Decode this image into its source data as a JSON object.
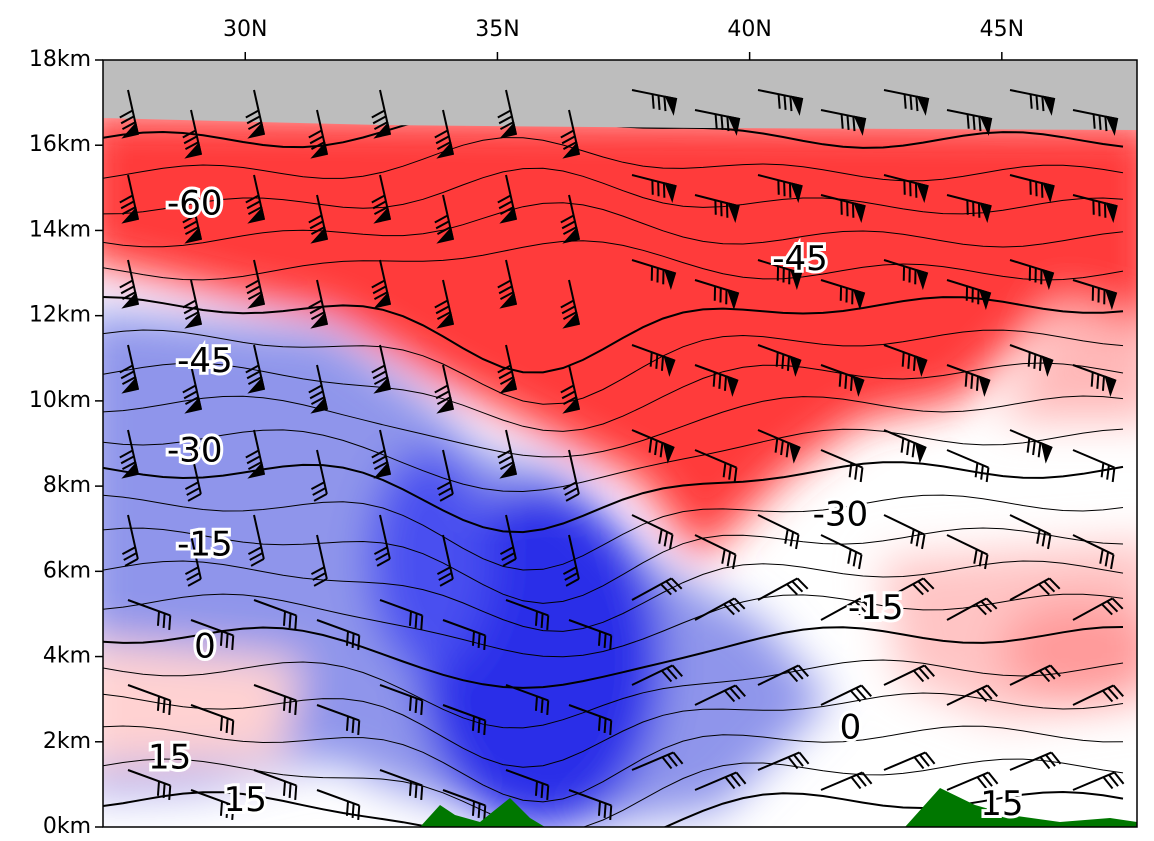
{
  "chart_data": {
    "type": "cross-section",
    "xlim": [
      27.18,
      47.68
    ],
    "ylim": [
      0,
      18
    ],
    "xticks": [
      {
        "value": 30,
        "label": "30N"
      },
      {
        "value": 35,
        "label": "35N"
      },
      {
        "value": 40,
        "label": "40N"
      },
      {
        "value": 45,
        "label": "45N"
      }
    ],
    "yticks": [
      {
        "value": 0,
        "label": "0km"
      },
      {
        "value": 2,
        "label": "2km"
      },
      {
        "value": 4,
        "label": "4km"
      },
      {
        "value": 6,
        "label": "6km"
      },
      {
        "value": 8,
        "label": "8km"
      },
      {
        "value": 10,
        "label": "10km"
      },
      {
        "value": 12,
        "label": "12km"
      },
      {
        "value": 14,
        "label": "14km"
      },
      {
        "value": 16,
        "label": "16km"
      },
      {
        "value": 18,
        "label": "18km"
      }
    ],
    "annotations": [
      {
        "value": -60,
        "x": 29.0,
        "y": 14.6
      },
      {
        "value": -45,
        "x": 41.0,
        "y": 13.3
      },
      {
        "value": -45,
        "x": 29.2,
        "y": 10.9
      },
      {
        "value": -30,
        "x": 29.0,
        "y": 8.8
      },
      {
        "value": -30,
        "x": 41.8,
        "y": 7.3
      },
      {
        "value": -15,
        "x": 29.2,
        "y": 6.6
      },
      {
        "value": -15,
        "x": 42.5,
        "y": 5.1
      },
      {
        "value": 0,
        "x": 29.2,
        "y": 4.2
      },
      {
        "value": 0,
        "x": 42.0,
        "y": 2.3
      },
      {
        "value": 15,
        "x": 28.5,
        "y": 1.6
      },
      {
        "value": 15,
        "x": 30.0,
        "y": 0.6
      },
      {
        "value": 15,
        "x": 45.0,
        "y": 0.5
      }
    ]
  }
}
